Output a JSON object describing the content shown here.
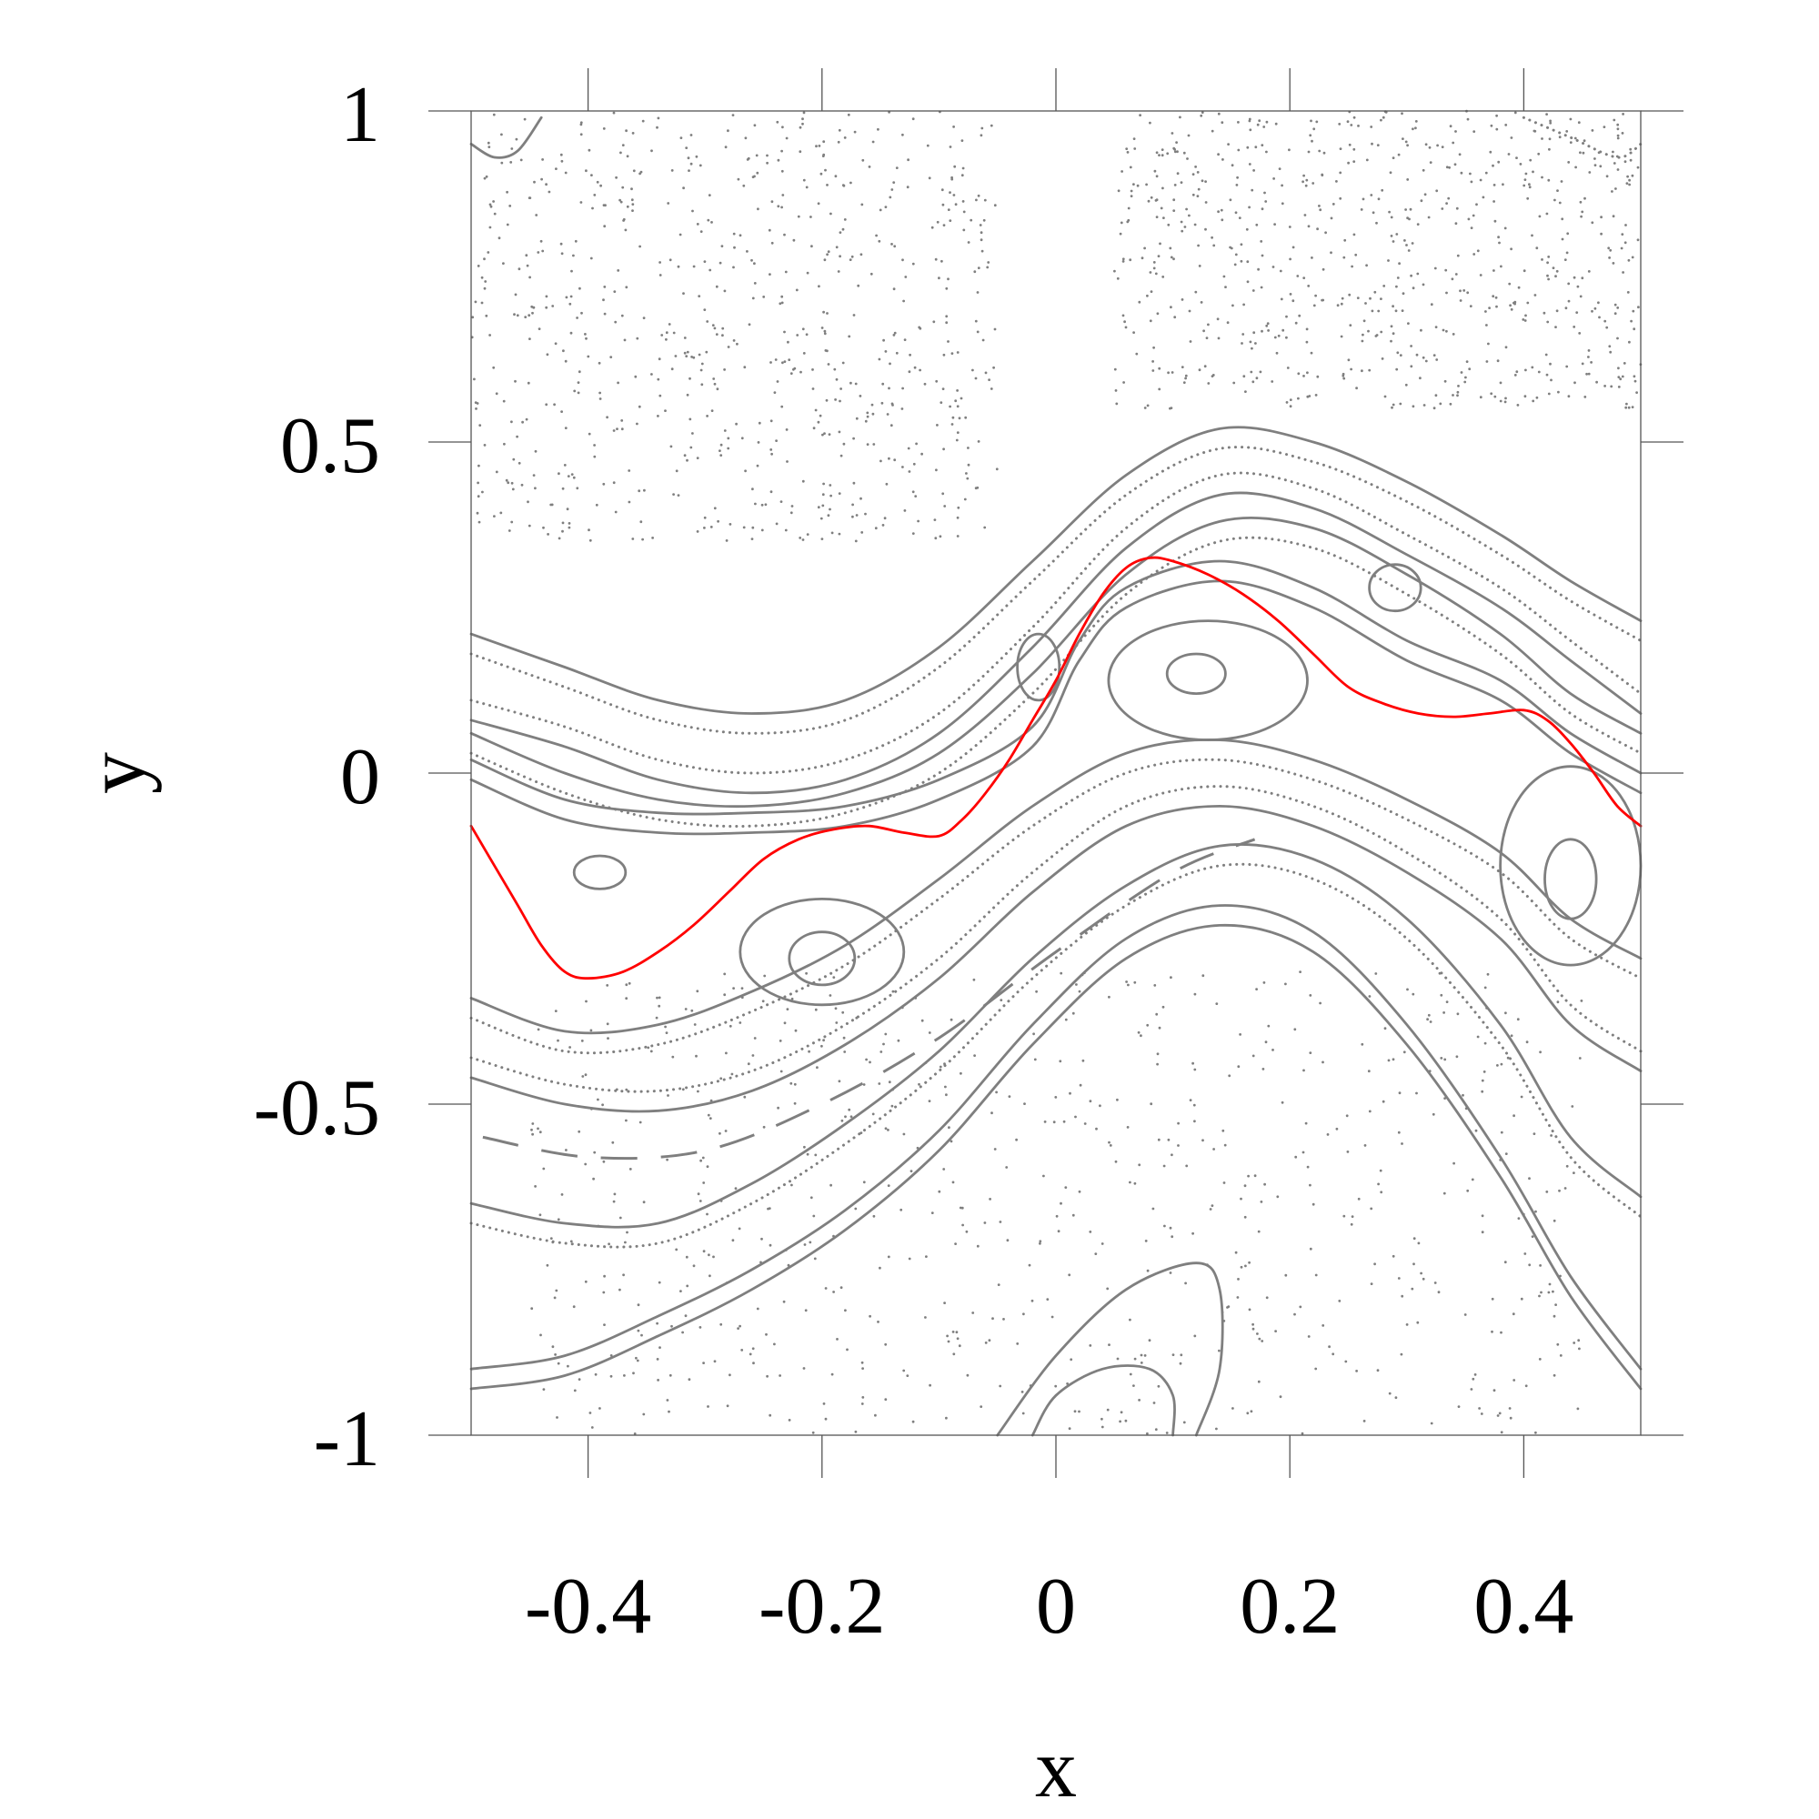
{
  "chart_data": {
    "type": "scatter",
    "title": "",
    "xlabel": "x",
    "ylabel": "y",
    "xlim": [
      -0.5,
      0.5
    ],
    "ylim": [
      -1,
      1
    ],
    "xticks": [
      -0.4,
      -0.2,
      0,
      0.2,
      0.4
    ],
    "xtick_labels": [
      "-0.4",
      "-0.2",
      "0",
      "0.2",
      "0.4"
    ],
    "yticks": [
      -1,
      -0.5,
      0,
      0.5,
      1
    ],
    "ytick_labels": [
      "-1",
      "-0.5",
      "0",
      "0.5",
      "1"
    ],
    "grid": false,
    "legend": "none",
    "colors": {
      "orbits": "#7f7f7f",
      "highlight": "#ff0000"
    },
    "highlighted_curve": {
      "x": [
        -0.5,
        -0.48,
        -0.46,
        -0.44,
        -0.42,
        -0.4,
        -0.37,
        -0.34,
        -0.31,
        -0.28,
        -0.25,
        -0.22,
        -0.19,
        -0.16,
        -0.13,
        -0.1,
        -0.08,
        -0.06,
        -0.04,
        -0.02,
        0.0,
        0.02,
        0.04,
        0.06,
        0.08,
        0.1,
        0.13,
        0.16,
        0.19,
        0.22,
        0.25,
        0.28,
        0.31,
        0.34,
        0.37,
        0.4,
        0.42,
        0.44,
        0.46,
        0.48,
        0.5
      ],
      "y": [
        -0.08,
        -0.14,
        -0.2,
        -0.26,
        -0.3,
        -0.31,
        -0.3,
        -0.27,
        -0.23,
        -0.18,
        -0.13,
        -0.1,
        -0.085,
        -0.08,
        -0.09,
        -0.095,
        -0.07,
        -0.03,
        0.02,
        0.08,
        0.14,
        0.21,
        0.27,
        0.31,
        0.325,
        0.32,
        0.3,
        0.27,
        0.23,
        0.18,
        0.13,
        0.105,
        0.09,
        0.085,
        0.09,
        0.095,
        0.08,
        0.045,
        0.0,
        -0.05,
        -0.08
      ]
    },
    "invariant_curves": [
      [
        [
          -0.5,
          0.21
        ],
        [
          -0.42,
          0.16
        ],
        [
          -0.34,
          0.11
        ],
        [
          -0.26,
          0.09
        ],
        [
          -0.18,
          0.11
        ],
        [
          -0.1,
          0.19
        ],
        [
          -0.02,
          0.32
        ],
        [
          0.06,
          0.45
        ],
        [
          0.14,
          0.52
        ],
        [
          0.22,
          0.5
        ],
        [
          0.3,
          0.44
        ],
        [
          0.38,
          0.36
        ],
        [
          0.44,
          0.29
        ],
        [
          0.5,
          0.23
        ]
      ],
      [
        [
          -0.5,
          0.11
        ],
        [
          -0.42,
          0.07
        ],
        [
          -0.34,
          0.02
        ],
        [
          -0.26,
          0.0
        ],
        [
          -0.18,
          0.02
        ],
        [
          -0.1,
          0.09
        ],
        [
          -0.02,
          0.22
        ],
        [
          0.06,
          0.37
        ],
        [
          0.14,
          0.45
        ],
        [
          0.22,
          0.43
        ],
        [
          0.3,
          0.36
        ],
        [
          0.38,
          0.28
        ],
        [
          0.44,
          0.2
        ],
        [
          0.5,
          0.12
        ]
      ],
      [
        [
          -0.5,
          0.06
        ],
        [
          -0.42,
          0.0
        ],
        [
          -0.34,
          -0.04
        ],
        [
          -0.26,
          -0.05
        ],
        [
          -0.18,
          -0.03
        ],
        [
          -0.1,
          0.03
        ],
        [
          -0.02,
          0.15
        ],
        [
          0.06,
          0.3
        ],
        [
          0.14,
          0.38
        ],
        [
          0.22,
          0.37
        ],
        [
          0.3,
          0.3
        ],
        [
          0.38,
          0.21
        ],
        [
          0.44,
          0.12
        ],
        [
          0.5,
          0.06
        ]
      ],
      [
        [
          -0.5,
          0.02
        ],
        [
          -0.42,
          -0.04
        ],
        [
          -0.34,
          -0.06
        ],
        [
          -0.26,
          -0.06
        ],
        [
          -0.18,
          -0.05
        ],
        [
          -0.1,
          -0.01
        ],
        [
          -0.02,
          0.07
        ],
        [
          0.02,
          0.2
        ],
        [
          0.06,
          0.28
        ],
        [
          0.14,
          0.32
        ],
        [
          0.22,
          0.28
        ],
        [
          0.3,
          0.2
        ],
        [
          0.38,
          0.14
        ],
        [
          0.44,
          0.06
        ],
        [
          0.5,
          0.0
        ]
      ],
      [
        [
          -0.5,
          -0.34
        ],
        [
          -0.42,
          -0.39
        ],
        [
          -0.34,
          -0.38
        ],
        [
          -0.26,
          -0.33
        ],
        [
          -0.18,
          -0.26
        ],
        [
          -0.1,
          -0.16
        ],
        [
          -0.02,
          -0.05
        ],
        [
          0.06,
          0.03
        ],
        [
          0.14,
          0.05
        ],
        [
          0.22,
          0.02
        ],
        [
          0.3,
          -0.04
        ],
        [
          0.38,
          -0.12
        ],
        [
          0.44,
          -0.22
        ],
        [
          0.5,
          -0.28
        ]
      ],
      [
        [
          -0.5,
          -0.43
        ],
        [
          -0.42,
          -0.47
        ],
        [
          -0.34,
          -0.48
        ],
        [
          -0.26,
          -0.45
        ],
        [
          -0.18,
          -0.38
        ],
        [
          -0.1,
          -0.28
        ],
        [
          -0.02,
          -0.15
        ],
        [
          0.06,
          -0.05
        ],
        [
          0.14,
          -0.02
        ],
        [
          0.22,
          -0.05
        ],
        [
          0.3,
          -0.12
        ],
        [
          0.38,
          -0.22
        ],
        [
          0.44,
          -0.35
        ],
        [
          0.5,
          -0.42
        ]
      ],
      [
        [
          -0.5,
          -0.65
        ],
        [
          -0.42,
          -0.68
        ],
        [
          -0.34,
          -0.68
        ],
        [
          -0.26,
          -0.62
        ],
        [
          -0.18,
          -0.53
        ],
        [
          -0.1,
          -0.42
        ],
        [
          -0.02,
          -0.28
        ],
        [
          0.06,
          -0.17
        ],
        [
          0.14,
          -0.11
        ],
        [
          0.22,
          -0.13
        ],
        [
          0.3,
          -0.22
        ],
        [
          0.38,
          -0.38
        ],
        [
          0.44,
          -0.55
        ],
        [
          0.5,
          -0.64
        ]
      ],
      [
        [
          -0.5,
          -0.9
        ],
        [
          -0.42,
          -0.88
        ],
        [
          -0.34,
          -0.82
        ],
        [
          -0.26,
          -0.75
        ],
        [
          -0.18,
          -0.66
        ],
        [
          -0.1,
          -0.54
        ],
        [
          -0.02,
          -0.38
        ],
        [
          0.06,
          -0.25
        ],
        [
          0.14,
          -0.2
        ],
        [
          0.22,
          -0.24
        ],
        [
          0.3,
          -0.38
        ],
        [
          0.38,
          -0.58
        ],
        [
          0.44,
          -0.76
        ],
        [
          0.5,
          -0.9
        ]
      ],
      [
        [
          -0.5,
          0.95
        ],
        [
          -0.48,
          0.93
        ],
        [
          -0.46,
          0.94
        ],
        [
          -0.44,
          0.99
        ]
      ],
      [
        [
          0.4,
          0.99
        ],
        [
          0.44,
          0.96
        ],
        [
          0.48,
          0.93
        ],
        [
          0.5,
          0.95
        ]
      ],
      [
        [
          -0.05,
          -1.0
        ],
        [
          0.0,
          -0.88
        ],
        [
          0.06,
          -0.78
        ],
        [
          0.12,
          -0.74
        ],
        [
          0.14,
          -0.78
        ],
        [
          0.14,
          -0.9
        ],
        [
          0.12,
          -1.0
        ]
      ],
      [
        [
          -0.02,
          -1.0
        ],
        [
          0.0,
          -0.94
        ],
        [
          0.04,
          -0.9
        ],
        [
          0.08,
          -0.9
        ],
        [
          0.1,
          -0.94
        ],
        [
          0.1,
          -1.0
        ]
      ]
    ],
    "island_chains": [
      {
        "center": [
          -0.39,
          -0.15
        ],
        "rx": 0.022,
        "ry": 0.025
      },
      {
        "center": [
          -0.015,
          0.16
        ],
        "rx": 0.018,
        "ry": 0.05
      },
      {
        "center": [
          0.29,
          0.28
        ],
        "rx": 0.022,
        "ry": 0.035
      },
      {
        "center": [
          -0.2,
          -0.28
        ],
        "rx": 0.028,
        "ry": 0.04
      },
      {
        "center": [
          0.12,
          0.15
        ],
        "rx": 0.025,
        "ry": 0.03
      },
      {
        "center": [
          0.44,
          -0.16
        ],
        "rx": 0.022,
        "ry": 0.06
      },
      {
        "center": [
          -0.2,
          -0.27
        ],
        "rx": 0.07,
        "ry": 0.08
      },
      {
        "center": [
          0.13,
          0.14
        ],
        "rx": 0.085,
        "ry": 0.09
      },
      {
        "center": [
          0.44,
          -0.14
        ],
        "rx": 0.06,
        "ry": 0.15
      }
    ],
    "chaotic_regions": [
      {
        "x": [
          -0.5,
          -0.05
        ],
        "y": [
          0.35,
          1.0
        ]
      },
      {
        "x": [
          0.05,
          0.5
        ],
        "y": [
          0.55,
          1.0
        ]
      },
      {
        "x": [
          -0.45,
          0.45
        ],
        "y": [
          -1.0,
          -0.3
        ]
      }
    ]
  }
}
